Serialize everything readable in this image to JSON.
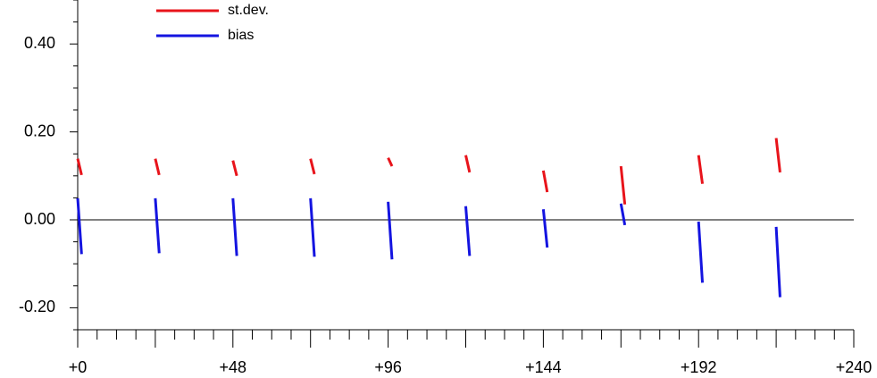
{
  "chart_data": {
    "type": "line",
    "x": [
      0,
      1.2,
      12,
      24,
      25.2,
      36,
      48,
      49.2,
      60,
      72,
      73.2,
      84,
      96,
      97.2,
      108,
      120,
      121.2,
      132,
      144,
      145.2,
      156,
      168,
      169.2,
      180,
      192,
      193.2,
      204,
      216,
      217.2
    ],
    "series": [
      {
        "name": "st.dev.",
        "color": "#e8141b",
        "values": [
          0.139,
          0.102,
          null,
          0.139,
          0.102,
          null,
          0.135,
          0.1,
          null,
          0.139,
          0.104,
          null,
          0.141,
          0.122,
          null,
          0.147,
          0.108,
          null,
          0.112,
          0.063,
          null,
          0.122,
          0.035,
          null,
          0.147,
          0.082,
          null,
          0.186,
          0.108
        ]
      },
      {
        "name": "bias",
        "color": "#1414e0",
        "values": [
          0.049,
          -0.078,
          null,
          0.049,
          -0.076,
          null,
          0.049,
          -0.082,
          null,
          0.049,
          -0.084,
          null,
          0.041,
          -0.09,
          null,
          0.031,
          -0.082,
          null,
          0.024,
          -0.063,
          null,
          0.037,
          -0.012,
          null,
          -0.004,
          -0.143,
          null,
          -0.016,
          -0.176
        ]
      }
    ],
    "xlim": [
      0,
      240
    ],
    "xticks": [
      {
        "value": 0,
        "label": "+0"
      },
      {
        "value": 48,
        "label": "+48"
      },
      {
        "value": 96,
        "label": "+96"
      },
      {
        "value": 144,
        "label": "+144"
      },
      {
        "value": 192,
        "label": "+192"
      },
      {
        "value": 240,
        "label": "+240"
      }
    ],
    "xmajorticks": [
      0,
      24,
      48,
      72,
      96,
      120,
      144,
      168,
      192,
      216,
      240
    ],
    "xminorticks": [
      6,
      12,
      18,
      30,
      36,
      42,
      54,
      60,
      66,
      78,
      84,
      90,
      102,
      108,
      114,
      126,
      132,
      138,
      150,
      156,
      162,
      174,
      180,
      186,
      198,
      204,
      210,
      222,
      228,
      234
    ],
    "ylim": [
      -0.25,
      0.5
    ],
    "yticks": [
      {
        "value": -0.2,
        "label": "-0.20"
      },
      {
        "value": 0,
        "label": "0.00"
      },
      {
        "value": 0.2,
        "label": "0.20"
      },
      {
        "value": 0.4,
        "label": "0.40"
      }
    ],
    "yminorticks": [
      -0.25,
      -0.15,
      -0.1,
      -0.05,
      0.05,
      0.1,
      0.15,
      0.25,
      0.3,
      0.35,
      0.45,
      0.5
    ],
    "zero_line": 0,
    "legend": "top-left"
  }
}
